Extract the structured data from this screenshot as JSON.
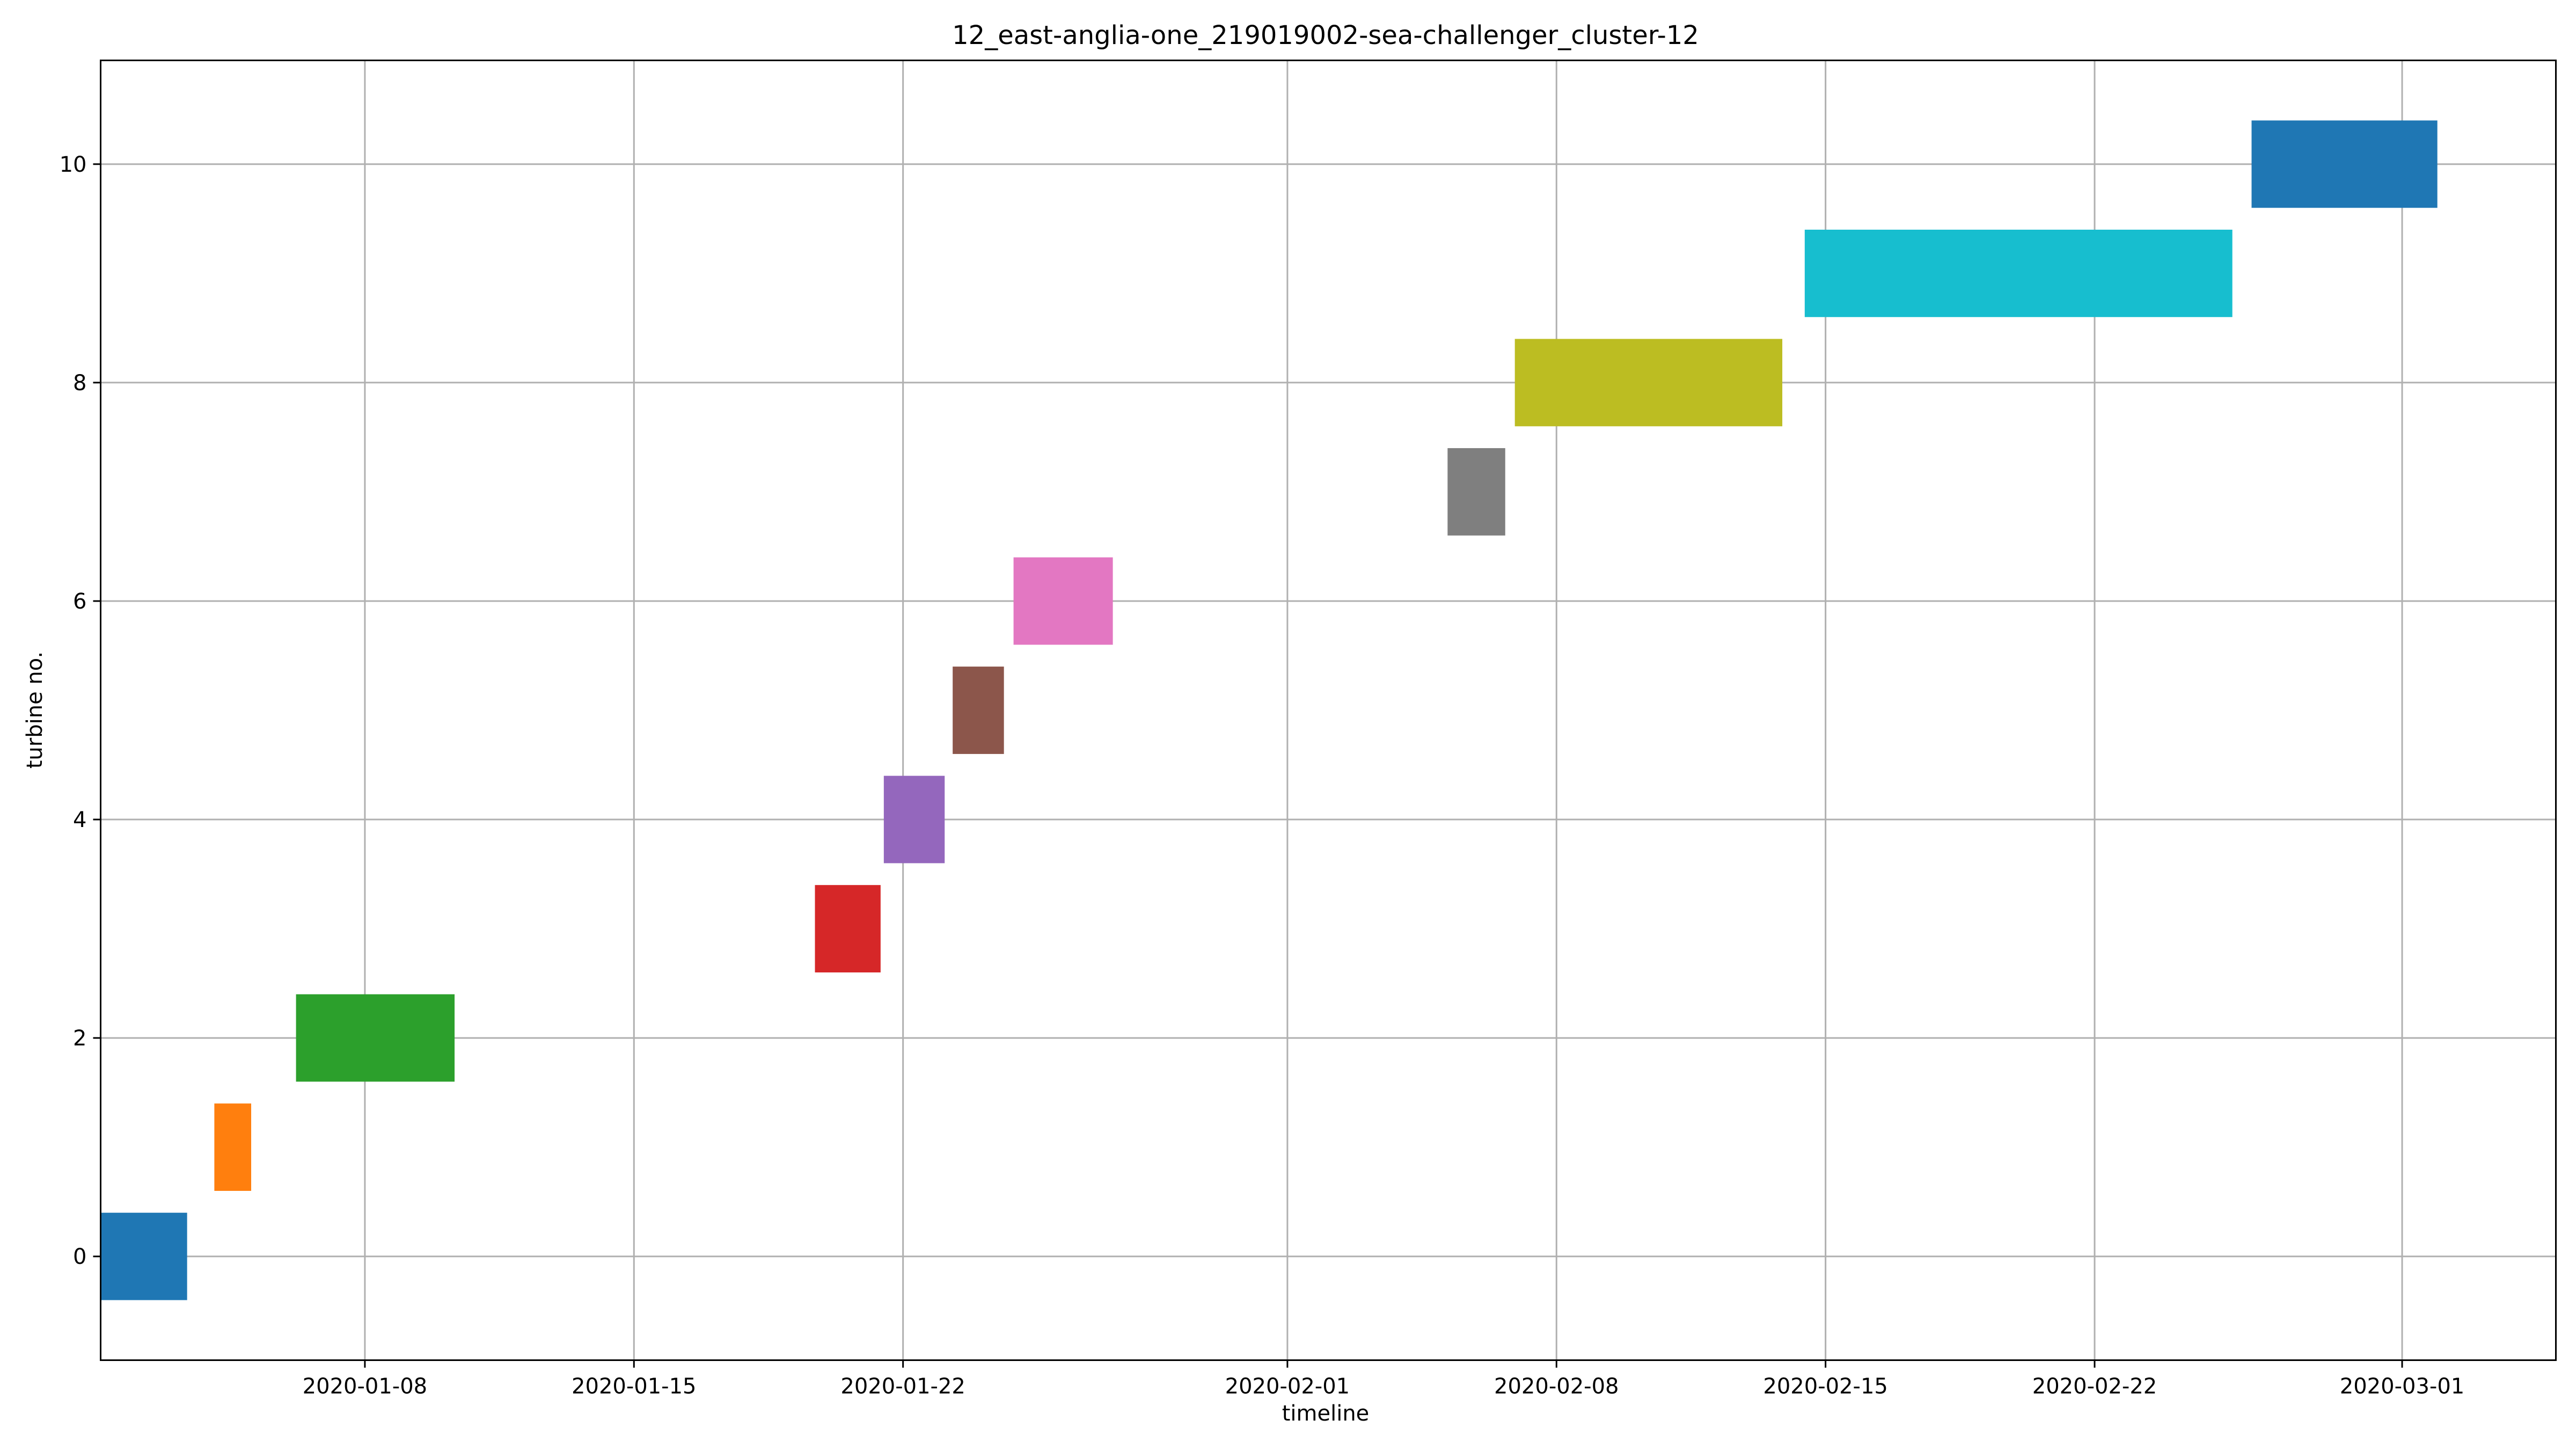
{
  "chart_data": {
    "type": "bar",
    "orientation": "horizontal-gantt",
    "title": "12_east-anglia-one_219019002-sea-challenger_cluster-12",
    "xlabel": "timeline",
    "ylabel": "turbine no.",
    "xlim": [
      "2020-01-01T03:00",
      "2020-03-05T00:00"
    ],
    "ylim": [
      -0.95,
      10.95
    ],
    "grid": true,
    "xticks": [
      "2020-01-08",
      "2020-01-15",
      "2020-01-22",
      "2020-02-01",
      "2020-02-08",
      "2020-02-15",
      "2020-02-22",
      "2020-03-01"
    ],
    "yticks": [
      0,
      2,
      4,
      6,
      8,
      10
    ],
    "bar_height": 0.8,
    "bars": [
      {
        "turbine": 0,
        "start": "2020-01-01T03:00",
        "end": "2020-01-03T09:00",
        "color": "#1f77b4"
      },
      {
        "turbine": 1,
        "start": "2020-01-04T02:00",
        "end": "2020-01-05T01:00",
        "color": "#ff7f0e"
      },
      {
        "turbine": 2,
        "start": "2020-01-06T05:00",
        "end": "2020-01-10T08:00",
        "color": "#2ca02c"
      },
      {
        "turbine": 3,
        "start": "2020-01-19T17:00",
        "end": "2020-01-21T10:00",
        "color": "#d62728"
      },
      {
        "turbine": 4,
        "start": "2020-01-21T12:00",
        "end": "2020-01-23T02:00",
        "color": "#9467bd"
      },
      {
        "turbine": 5,
        "start": "2020-01-23T07:00",
        "end": "2020-01-24T15:00",
        "color": "#8c564b"
      },
      {
        "turbine": 6,
        "start": "2020-01-24T21:00",
        "end": "2020-01-27T11:00",
        "color": "#e377c2"
      },
      {
        "turbine": 7,
        "start": "2020-02-05T04:00",
        "end": "2020-02-06T16:00",
        "color": "#7f7f7f"
      },
      {
        "turbine": 8,
        "start": "2020-02-06T22:00",
        "end": "2020-02-13T21:00",
        "color": "#bcbd22"
      },
      {
        "turbine": 9,
        "start": "2020-02-14T11:00",
        "end": "2020-02-25T14:00",
        "color": "#17becf"
      },
      {
        "turbine": 10,
        "start": "2020-02-26T02:00",
        "end": "2020-03-01T22:00",
        "color": "#1f77b4"
      }
    ]
  }
}
